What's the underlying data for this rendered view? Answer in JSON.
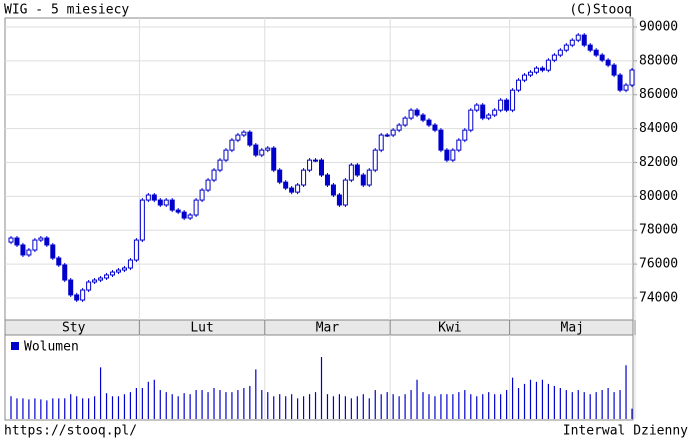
{
  "chart_data": {
    "type": "candlestick",
    "title": "WIG - 5 miesiecy",
    "source": "(C)Stooq",
    "url": "https://stooq.pl/",
    "interval": "Interwal Dzienny",
    "volume_name": "Wolumen",
    "color": "#0000cc",
    "grid": true,
    "ylim": [
      72700,
      90530
    ],
    "yticks": [
      74000,
      76000,
      78000,
      80000,
      82000,
      84000,
      86000,
      88000,
      90000
    ],
    "periods": [
      {
        "label": "Sty",
        "first": 0
      },
      {
        "label": "Lut",
        "first": 22
      },
      {
        "label": "Mar",
        "first": 43
      },
      {
        "label": "Kwi",
        "first": 64
      },
      {
        "label": "Maj",
        "first": 84
      }
    ],
    "open": [
      77300,
      77540,
      77130,
      76540,
      76830,
      77420,
      77540,
      77130,
      76360,
      75950,
      75060,
      74180,
      73880,
      74470,
      74940,
      75060,
      75180,
      75360,
      75530,
      75650,
      75770,
      76240,
      77420,
      79780,
      80080,
      79780,
      79490,
      79780,
      79190,
      79070,
      78720,
      78900,
      79780,
      80370,
      80960,
      81550,
      82140,
      82730,
      83320,
      83620,
      83790,
      83030,
      82440,
      82730,
      82850,
      81550,
      80840,
      80490,
      80250,
      80670,
      81550,
      82140,
      82140,
      81260,
      80670,
      80080,
      79490,
      80960,
      81850,
      81260,
      80670,
      81550,
      82730,
      83620,
      83620,
      83910,
      84210,
      84620,
      85090,
      84800,
      84500,
      84210,
      83910,
      82730,
      82140,
      82730,
      83320,
      83910,
      85090,
      85390,
      84620,
      84800,
      85090,
      85680,
      85090,
      86270,
      86860,
      87160,
      87330,
      87570,
      87450,
      88040,
      88340,
      88630,
      88930,
      89220,
      89520,
      88930,
      88630,
      88340,
      88040,
      87750,
      87160,
      86270,
      86570
    ],
    "high": [
      77660,
      77660,
      77250,
      76950,
      77540,
      77660,
      77660,
      77250,
      76480,
      76070,
      75180,
      74300,
      74590,
      75060,
      75180,
      75300,
      75480,
      75650,
      75770,
      75890,
      76360,
      77540,
      79900,
      80200,
      80200,
      79900,
      79900,
      79900,
      79310,
      79190,
      79020,
      79900,
      80490,
      81080,
      81670,
      82260,
      82850,
      83440,
      83740,
      83910,
      83910,
      83150,
      82850,
      82970,
      82970,
      81670,
      80960,
      80610,
      80790,
      81670,
      82260,
      82260,
      82260,
      81380,
      80790,
      80200,
      81080,
      81970,
      81970,
      81380,
      81670,
      82850,
      83740,
      83740,
      84030,
      84330,
      84740,
      85210,
      85210,
      84920,
      84620,
      84330,
      84030,
      82850,
      82850,
      83440,
      84030,
      85210,
      85510,
      85510,
      84920,
      85210,
      85800,
      85800,
      86390,
      86980,
      87280,
      87450,
      87690,
      87690,
      88160,
      88460,
      88750,
      89050,
      89340,
      89640,
      89640,
      89050,
      88750,
      88460,
      88160,
      87870,
      87280,
      86690,
      87580
    ],
    "low": [
      77180,
      77010,
      76420,
      76420,
      76710,
      77300,
      77010,
      76240,
      75830,
      74940,
      74060,
      73760,
      73760,
      74350,
      74820,
      74940,
      75060,
      75240,
      75410,
      75530,
      75650,
      76120,
      77300,
      79660,
      79660,
      79370,
      79370,
      79070,
      78950,
      78600,
      78600,
      78780,
      79660,
      80250,
      80840,
      81430,
      82020,
      82610,
      83200,
      83500,
      82910,
      82320,
      82320,
      82610,
      81430,
      80720,
      80370,
      80130,
      80130,
      80550,
      81430,
      82020,
      81140,
      80550,
      79960,
      79370,
      79370,
      80840,
      81140,
      80550,
      80550,
      81430,
      82610,
      83500,
      83500,
      83790,
      84090,
      84500,
      84680,
      84380,
      84090,
      83790,
      82610,
      82020,
      82020,
      82610,
      83200,
      83790,
      84970,
      84500,
      84500,
      84680,
      84970,
      84970,
      84970,
      86150,
      86740,
      87040,
      87210,
      87330,
      87330,
      87920,
      88220,
      88510,
      88810,
      89100,
      88810,
      88510,
      88220,
      87920,
      87630,
      87040,
      86150,
      86150,
      86450
    ],
    "close": [
      77540,
      77130,
      76540,
      76830,
      77420,
      77540,
      77130,
      76360,
      75950,
      75060,
      74180,
      73880,
      74470,
      74940,
      75060,
      75180,
      75360,
      75530,
      75650,
      75770,
      76240,
      77420,
      79780,
      80080,
      79780,
      79490,
      79780,
      79190,
      79070,
      78720,
      78900,
      79780,
      80370,
      80960,
      81550,
      82140,
      82730,
      83320,
      83620,
      83790,
      83030,
      82440,
      82730,
      82850,
      81550,
      80840,
      80490,
      80250,
      80670,
      81550,
      82140,
      82140,
      81260,
      80670,
      80080,
      79490,
      80960,
      81850,
      81260,
      80670,
      81550,
      82730,
      83620,
      83620,
      83910,
      84210,
      84620,
      85090,
      84800,
      84500,
      84210,
      83910,
      82730,
      82140,
      82730,
      83320,
      83910,
      85090,
      85390,
      84620,
      84800,
      85090,
      85680,
      85090,
      86270,
      86860,
      87160,
      87330,
      87570,
      87450,
      88040,
      88340,
      88630,
      88930,
      89220,
      89520,
      88930,
      88630,
      88340,
      88040,
      87750,
      87160,
      86270,
      86570,
      87460
    ],
    "volume": [
      22,
      20,
      20,
      19,
      20,
      19,
      18,
      20,
      20,
      20,
      24,
      22,
      20,
      20,
      22,
      50,
      25,
      22,
      22,
      24,
      26,
      30,
      30,
      36,
      38,
      28,
      26,
      24,
      22,
      25,
      24,
      28,
      28,
      26,
      30,
      28,
      26,
      26,
      28,
      30,
      32,
      48,
      28,
      26,
      22,
      24,
      22,
      24,
      20,
      22,
      24,
      26,
      60,
      24,
      22,
      24,
      22,
      20,
      22,
      24,
      20,
      28,
      24,
      26,
      24,
      22,
      24,
      28,
      38,
      26,
      24,
      22,
      24,
      24,
      24,
      26,
      28,
      24,
      22,
      24,
      26,
      24,
      24,
      28,
      40,
      30,
      34,
      38,
      36,
      38,
      34,
      32,
      30,
      28,
      26,
      28,
      26,
      24,
      26,
      28,
      30,
      26,
      28,
      52,
      10
    ]
  }
}
